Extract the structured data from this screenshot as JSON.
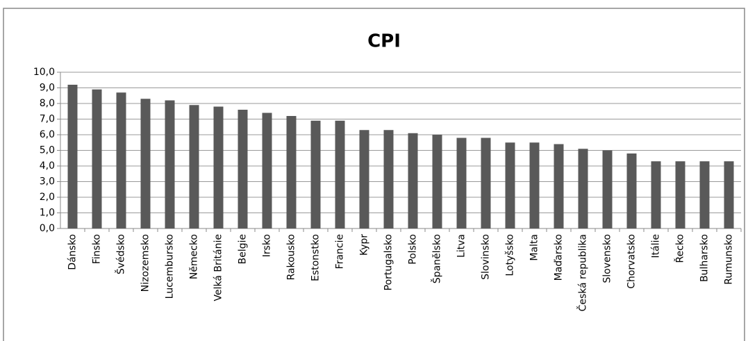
{
  "chart_data": {
    "type": "bar",
    "title": "CPI",
    "categories": [
      "Dánsko",
      "Finsko",
      "Švédsko",
      "Nizozemsko",
      "Lucembursko",
      "Německo",
      "Velká Británie",
      "Belgie",
      "Irsko",
      "Rakousko",
      "Estonstko",
      "Francie",
      "Kypr",
      "Portugalsko",
      "Polsko",
      "Španělsko",
      "Litva",
      "Slovinsko",
      "Lotyšsko",
      "Malta",
      "Maďarsko",
      "Česká republika",
      "Slovensko",
      "Chorvatsko",
      "Itálie",
      "Řecko",
      "Bulharsko",
      "Rumunsko"
    ],
    "values": [
      9.2,
      8.9,
      8.7,
      8.3,
      8.2,
      7.9,
      7.8,
      7.6,
      7.4,
      7.2,
      6.9,
      6.9,
      6.3,
      6.3,
      6.1,
      6.0,
      5.8,
      5.8,
      5.5,
      5.5,
      5.4,
      5.1,
      5.0,
      4.8,
      4.3,
      4.3,
      4.3,
      4.3
    ],
    "color": "#595959",
    "ylim": [
      0,
      10
    ],
    "yticks": [
      {
        "value": 0,
        "label": "0,0"
      },
      {
        "value": 1,
        "label": "1,0"
      },
      {
        "value": 2,
        "label": "2,0"
      },
      {
        "value": 3,
        "label": "3,0"
      },
      {
        "value": 4,
        "label": "4,0"
      },
      {
        "value": 5,
        "label": "5,0"
      },
      {
        "value": 6,
        "label": "6,0"
      },
      {
        "value": 7,
        "label": "7,0"
      },
      {
        "value": 8,
        "label": "8,0"
      },
      {
        "value": 9,
        "label": "9,0"
      },
      {
        "value": 10,
        "label": "10,0"
      }
    ],
    "grid": true
  }
}
